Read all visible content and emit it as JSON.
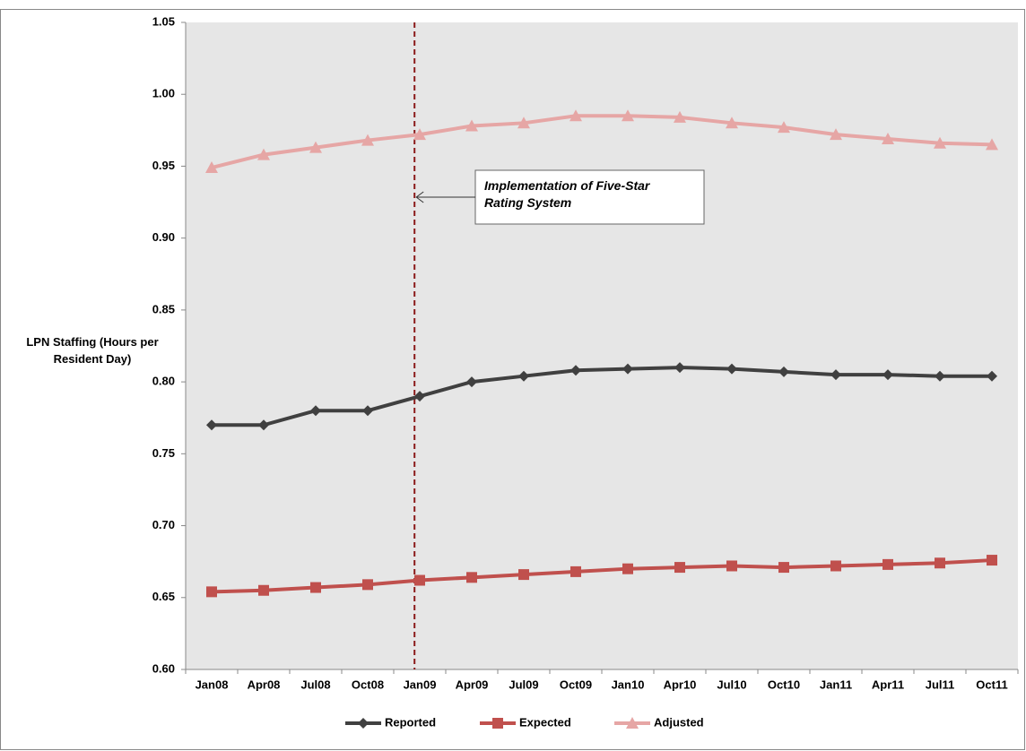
{
  "chart_data": {
    "type": "line",
    "y_label": "LPN Staffing (Hours per Resident Day)",
    "annotation": "Implementation of Five-Star Rating System",
    "categories": [
      "Jan08",
      "Apr08",
      "Jul08",
      "Oct08",
      "Jan09",
      "Apr09",
      "Jul09",
      "Oct09",
      "Jan10",
      "Apr10",
      "Jul10",
      "Oct10",
      "Jan11",
      "Apr11",
      "Jul11",
      "Oct11"
    ],
    "series": [
      {
        "name": "Reported",
        "color": "#404040",
        "marker": "diamond",
        "values": [
          0.77,
          0.77,
          0.78,
          0.78,
          0.79,
          0.8,
          0.804,
          0.808,
          0.809,
          0.81,
          0.809,
          0.807,
          0.805,
          0.805,
          0.804,
          0.804
        ]
      },
      {
        "name": "Expected",
        "color": "#c0504d",
        "marker": "square",
        "values": [
          0.654,
          0.655,
          0.657,
          0.659,
          0.662,
          0.664,
          0.666,
          0.668,
          0.67,
          0.671,
          0.672,
          0.671,
          0.672,
          0.673,
          0.674,
          0.676
        ]
      },
      {
        "name": "Adjusted",
        "color": "#e6a6a5",
        "marker": "triangle",
        "values": [
          0.949,
          0.958,
          0.963,
          0.968,
          0.972,
          0.978,
          0.98,
          0.985,
          0.985,
          0.984,
          0.98,
          0.977,
          0.972,
          0.969,
          0.966,
          0.965
        ]
      }
    ],
    "ylim": [
      0.6,
      1.05
    ],
    "yticks": [
      {
        "value": 0.6,
        "label": "0.60"
      },
      {
        "value": 0.65,
        "label": "0.65"
      },
      {
        "value": 0.7,
        "label": "0.70"
      },
      {
        "value": 0.75,
        "label": "0.75"
      },
      {
        "value": 0.8,
        "label": "0.80"
      },
      {
        "value": 0.85,
        "label": "0.85"
      },
      {
        "value": 0.9,
        "label": "0.90"
      },
      {
        "value": 0.95,
        "label": "0.95"
      },
      {
        "value": 1.0,
        "label": "1.00"
      },
      {
        "value": 1.05,
        "label": "1.05"
      }
    ],
    "grid": false,
    "legend": "bottom"
  }
}
